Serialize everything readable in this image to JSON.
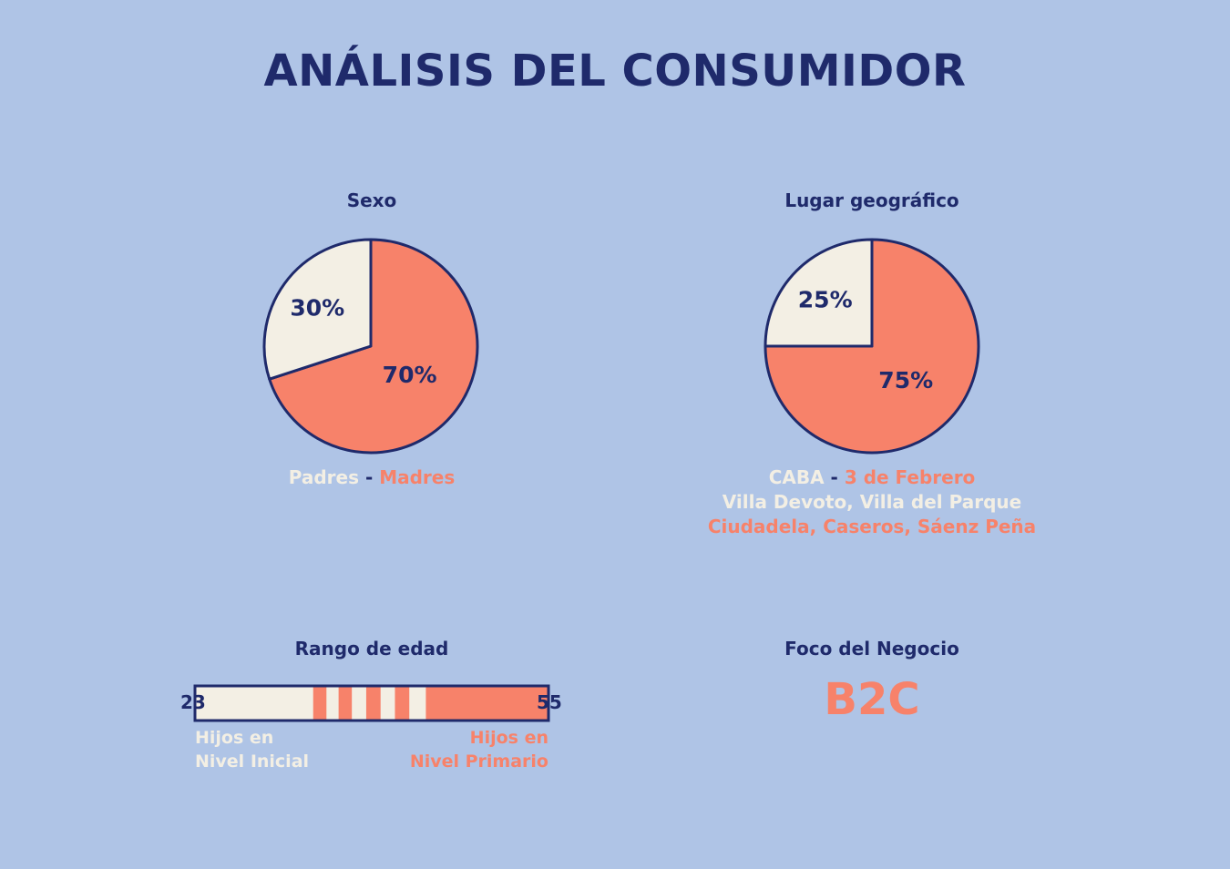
{
  "page": {
    "title": "ANÁLISIS DEL CONSUMIDOR"
  },
  "colors": {
    "background": "#AFC4E6",
    "dark": "#1F2A6B",
    "accent": "#F7826A",
    "light": "#F3EFE4"
  },
  "chart_data": [
    {
      "type": "pie",
      "title": "Sexo",
      "slices": [
        {
          "label": "Madres",
          "value": 70,
          "display": "70%",
          "color": "#F7826A"
        },
        {
          "label": "Padres",
          "value": 30,
          "display": "30%",
          "color": "#F3EFE4"
        }
      ],
      "legend": [
        {
          "text": "Padres",
          "color": "light"
        },
        {
          "text": " - ",
          "color": "dark"
        },
        {
          "text": "Madres",
          "color": "accent"
        }
      ]
    },
    {
      "type": "pie",
      "title": "Lugar geográfico",
      "slices": [
        {
          "label": "3 de Febrero",
          "value": 75,
          "display": "75%",
          "color": "#F7826A"
        },
        {
          "label": "CABA",
          "value": 25,
          "display": "25%",
          "color": "#F3EFE4"
        }
      ],
      "legend_line1": [
        {
          "text": "CABA",
          "color": "light"
        },
        {
          "text": " - ",
          "color": "dark"
        },
        {
          "text": "3 de Febrero",
          "color": "accent"
        }
      ],
      "legend_line2": "Villa Devoto, Villa del Parque",
      "legend_line3": "Ciudadela, Caseros, Sáenz Peña"
    }
  ],
  "age_range": {
    "title": "Rango de edad",
    "min": 23,
    "max": 55,
    "min_label": "23",
    "max_label": "55",
    "segments": [
      {
        "from": 23,
        "to": 33.7,
        "color": "light"
      },
      {
        "from": 33.7,
        "to": 34.9,
        "color": "accent"
      },
      {
        "from": 34.9,
        "to": 36.0,
        "color": "light"
      },
      {
        "from": 36.0,
        "to": 37.2,
        "color": "accent"
      },
      {
        "from": 37.2,
        "to": 38.5,
        "color": "light"
      },
      {
        "from": 38.5,
        "to": 39.8,
        "color": "accent"
      },
      {
        "from": 39.8,
        "to": 41.1,
        "color": "light"
      },
      {
        "from": 41.1,
        "to": 42.4,
        "color": "accent"
      },
      {
        "from": 42.4,
        "to": 43.9,
        "color": "light"
      },
      {
        "from": 43.9,
        "to": 55,
        "color": "accent"
      }
    ],
    "left_caption": [
      "Hijos en",
      "Nivel Inicial"
    ],
    "right_caption": [
      "Hijos en",
      "Nivel Primario"
    ]
  },
  "business_focus": {
    "title": "Foco del Negocio",
    "value": "B2C"
  }
}
